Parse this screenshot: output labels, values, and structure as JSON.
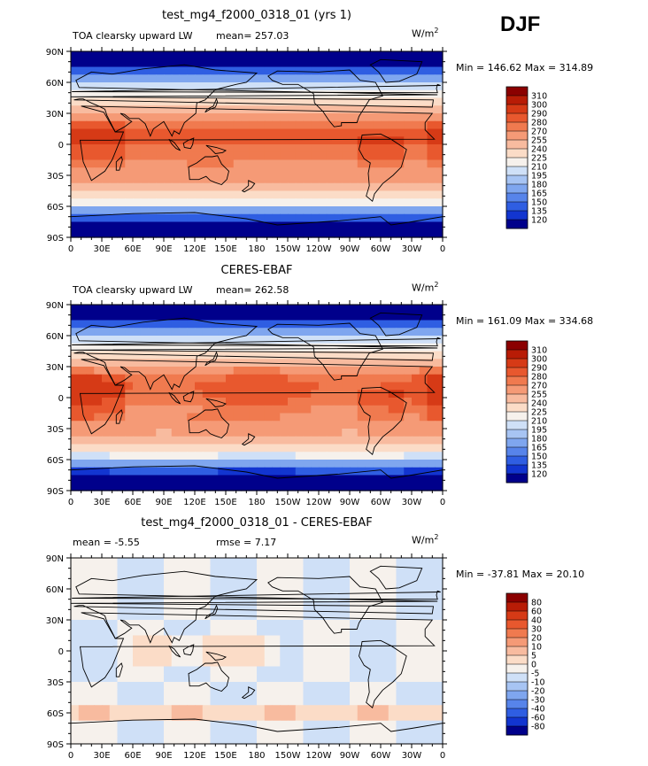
{
  "season": "DJF",
  "xticks": [
    "0",
    "30E",
    "60E",
    "90E",
    "120E",
    "150E",
    "180",
    "150W",
    "120W",
    "90W",
    "60W",
    "30W",
    "0"
  ],
  "yticks": [
    "90N",
    "60N",
    "30N",
    "0",
    "30S",
    "60S",
    "90S"
  ],
  "panels": [
    {
      "title": "test_mg4_f2000_0318_01 (yrs 1)",
      "left_label": "TOA clearsky upward LW",
      "mean_label": "mean= 257.03",
      "right_label": "",
      "units": "W/m",
      "units_sup": "2",
      "stats": "Min = 146.62 Max = 314.89",
      "field": "model"
    },
    {
      "title": "CERES-EBAF",
      "left_label": "TOA clearsky upward LW",
      "mean_label": "mean= 262.58",
      "right_label": "",
      "units": "W/m",
      "units_sup": "2",
      "stats": "Min = 161.09 Max = 334.68",
      "field": "obs"
    },
    {
      "title": "test_mg4_f2000_0318_01 - CERES-EBAF",
      "left_label": "mean =   -5.55",
      "mean_label": "rmse =    7.17",
      "right_label": "",
      "units": "W/m",
      "units_sup": "2",
      "stats": "Min = -37.81 Max =  20.10",
      "field": "diff"
    }
  ],
  "colorbars": {
    "abs": {
      "labels": [
        "310",
        "300",
        "290",
        "280",
        "270",
        "255",
        "240",
        "225",
        "210",
        "195",
        "180",
        "165",
        "150",
        "135",
        "120"
      ],
      "colors": [
        "#8b0000",
        "#b81c06",
        "#d63a16",
        "#e8582e",
        "#f07a4f",
        "#f59a76",
        "#f8bb9f",
        "#fbdcc7",
        "#f6f1ec",
        "#cfe0f7",
        "#a7c4f3",
        "#7fa6ef",
        "#5784ea",
        "#2f5ee2",
        "#1235d0",
        "#00008b"
      ]
    },
    "diff": {
      "labels": [
        "80",
        "60",
        "40",
        "30",
        "20",
        "10",
        "5",
        "0",
        "-5",
        "-10",
        "-20",
        "-30",
        "-40",
        "-60",
        "-80"
      ],
      "colors": [
        "#8b0000",
        "#b81c06",
        "#d63a16",
        "#e8582e",
        "#f07a4f",
        "#f59a76",
        "#f8bb9f",
        "#fbdcc7",
        "#f6f1ec",
        "#cfe0f7",
        "#a7c4f3",
        "#7fa6ef",
        "#5784ea",
        "#2f5ee2",
        "#1235d0",
        "#00008b"
      ]
    }
  }
}
